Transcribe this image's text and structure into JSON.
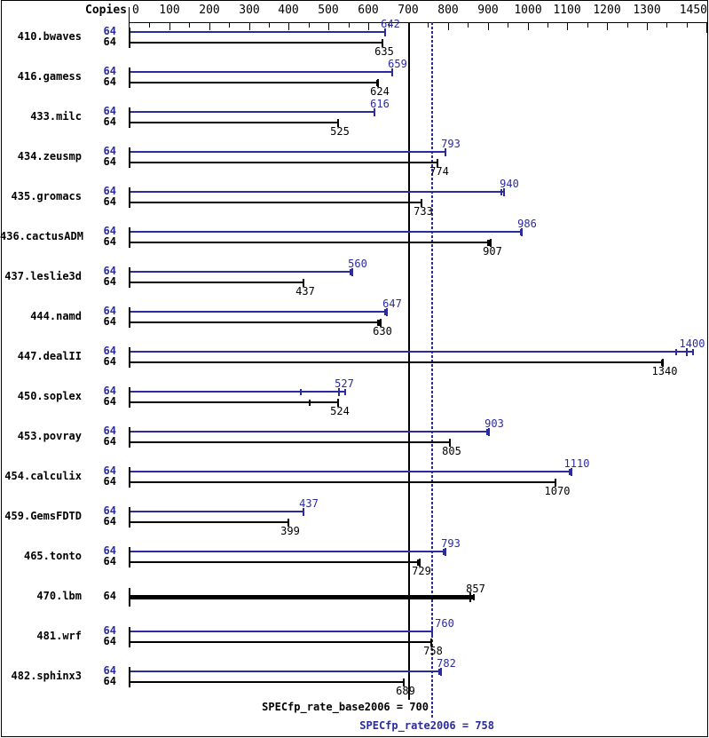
{
  "header": {
    "copies_label": "Copies"
  },
  "colors": {
    "peak": "#2b2ba0",
    "base": "#000000",
    "axis": "#000000",
    "background": "#ffffff"
  },
  "chart_data": {
    "type": "bar",
    "orientation": "horizontal",
    "axis": {
      "min": 0,
      "max": 1450,
      "major_tick_step": 100,
      "minor_tick_step": 50,
      "tick_labels": [
        "0",
        "100",
        "200",
        "300",
        "400",
        "500",
        "600",
        "700",
        "800",
        "900",
        "1000",
        "1100",
        "1200",
        "1300",
        "1450"
      ]
    },
    "copies": "64",
    "series": [
      {
        "name": "peak",
        "color": "#2b2ba0"
      },
      {
        "name": "base",
        "color": "#000000"
      }
    ],
    "benchmarks": [
      {
        "name": "410.bwaves",
        "peak": {
          "value": 642
        },
        "base": {
          "value": 635
        }
      },
      {
        "name": "416.gamess",
        "peak": {
          "value": 659
        },
        "base": {
          "value": 624,
          "marks": [
            619
          ]
        }
      },
      {
        "name": "433.milc",
        "peak": {
          "value": 616
        },
        "base": {
          "value": 525
        }
      },
      {
        "name": "434.zeusmp",
        "peak": {
          "value": 793
        },
        "base": {
          "value": 774
        }
      },
      {
        "name": "435.gromacs",
        "peak": {
          "value": 940,
          "marks": [
            933
          ]
        },
        "base": {
          "value": 733
        }
      },
      {
        "name": "436.cactusADM",
        "peak": {
          "value": 986,
          "marks": [
            982
          ]
        },
        "base": {
          "value": 907,
          "marks": [
            899,
            903
          ]
        }
      },
      {
        "name": "437.leslie3d",
        "peak": {
          "value": 560,
          "marks": [
            553
          ]
        },
        "base": {
          "value": 437
        }
      },
      {
        "name": "444.namd",
        "peak": {
          "value": 647,
          "marks": [
            641
          ]
        },
        "base": {
          "value": 630,
          "marks": [
            622,
            626
          ]
        }
      },
      {
        "name": "447.dealII",
        "peak": {
          "value": 1400,
          "marks": [
            1372,
            1414
          ]
        },
        "base": {
          "value": 1340,
          "marks": [
            1335
          ]
        }
      },
      {
        "name": "450.soplex",
        "peak": {
          "value": 527,
          "marks": [
            428,
            540
          ]
        },
        "base": {
          "value": 524,
          "marks": [
            451
          ]
        }
      },
      {
        "name": "453.povray",
        "peak": {
          "value": 903,
          "marks": [
            897
          ]
        },
        "base": {
          "value": 805
        }
      },
      {
        "name": "454.calculix",
        "peak": {
          "value": 1110,
          "marks": [
            1104
          ]
        },
        "base": {
          "value": 1070
        }
      },
      {
        "name": "459.GemsFDTD",
        "peak": {
          "value": 437
        },
        "base": {
          "value": 399
        }
      },
      {
        "name": "465.tonto",
        "peak": {
          "value": 793,
          "marks": [
            787
          ]
        },
        "base": {
          "value": 729,
          "marks": [
            723
          ]
        }
      },
      {
        "name": "470.lbm",
        "single": true,
        "base": {
          "value": 857,
          "marks": [
            862
          ]
        }
      },
      {
        "name": "481.wrf",
        "peak": {
          "value": 760,
          "label_dx": 14
        },
        "base": {
          "value": 758,
          "marks": [
            755
          ]
        }
      },
      {
        "name": "482.sphinx3",
        "peak": {
          "value": 782,
          "marks": [
            776
          ]
        },
        "base": {
          "value": 689,
          "label_dx": -12
        }
      }
    ],
    "reference_lines": [
      {
        "label": "SPECfp_rate_base2006 = 700",
        "value": 700,
        "style": "solid",
        "color": "#000000"
      },
      {
        "label": "SPECfp_rate2006 = 758",
        "value": 758,
        "style": "dotted",
        "color": "#2b2ba0"
      }
    ]
  }
}
